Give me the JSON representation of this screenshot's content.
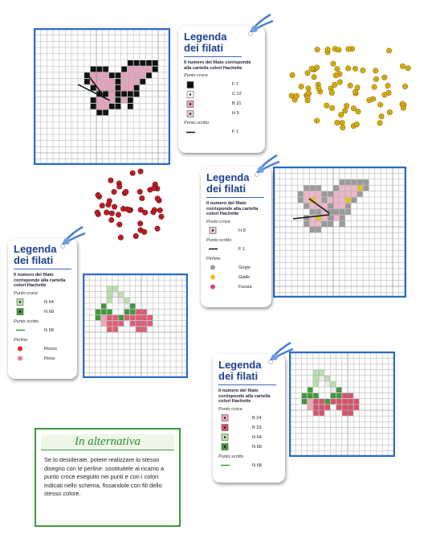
{
  "legends": [
    {
      "title": "Legenda dei filati",
      "note": "Il numero del filato corrisponde alla cartella colori Hachette",
      "sections": [
        {
          "heading": "Punto croce",
          "mark": "square",
          "items": [
            {
              "label": "F 1",
              "swatch": "#111111"
            },
            {
              "label": "C 12",
              "swatch": "#ffffff"
            },
            {
              "label": "B 31",
              "swatch": "#e9a0bd"
            },
            {
              "label": "H 9",
              "swatch": "#e7c9dc"
            }
          ]
        },
        {
          "heading": "Punto scritto",
          "mark": "line",
          "items": [
            {
              "label": "F 1",
              "swatch": "#111111"
            }
          ]
        }
      ]
    },
    {
      "title": "Legenda dei filati",
      "note": "Il numero del filato corrisponde alla cartella colori Hachette",
      "sections": [
        {
          "heading": "Punto croce",
          "mark": "square",
          "items": [
            {
              "label": "H 9",
              "swatch": "#e7c9dc"
            }
          ]
        },
        {
          "heading": "Punto scritto",
          "mark": "line",
          "items": [
            {
              "label": "F 1",
              "swatch": "#111111"
            }
          ]
        },
        {
          "heading": "Perline",
          "mark": "bead",
          "items": [
            {
              "label": "Grigio",
              "swatch": "#9a9a9a"
            },
            {
              "label": "Giallo",
              "swatch": "#e8c21a"
            },
            {
              "label": "Fucsia",
              "swatch": "#e0408a"
            }
          ]
        }
      ]
    },
    {
      "title": "Legenda dei filati",
      "note": "Il numero del filato corrisponde alla cartella colori Hachette",
      "sections": [
        {
          "heading": "Punto croce",
          "mark": "square",
          "items": [
            {
              "label": "N 64",
              "swatch": "#b8e3a8"
            },
            {
              "label": "N 68",
              "swatch": "#3f9a3a"
            }
          ]
        },
        {
          "heading": "Punto scritto",
          "mark": "line",
          "items": [
            {
              "label": "N 68",
              "swatch": "#3f9a3a"
            }
          ]
        },
        {
          "heading": "Perline",
          "mark": "bead",
          "items": [
            {
              "label": "Rosso",
              "swatch": "#d7262e"
            },
            {
              "label": "Rosa",
              "swatch": "#f07a90"
            }
          ]
        }
      ]
    },
    {
      "title": "Legenda dei filati",
      "note": "Il numero del filato corrisponde alla cartella colori Hachette",
      "sections": [
        {
          "heading": "Punto croce",
          "mark": "square",
          "items": [
            {
              "label": "B 24",
              "swatch": "#f2a6b6"
            },
            {
              "label": "B 23",
              "swatch": "#d9506a"
            },
            {
              "label": "N 64",
              "swatch": "#b8e3a8"
            },
            {
              "label": "N 68",
              "swatch": "#3f9a3a"
            }
          ]
        },
        {
          "heading": "Punto scritto",
          "mark": "line",
          "items": [
            {
              "label": "N 68",
              "swatch": "#3f9a3a"
            }
          ]
        }
      ]
    }
  ],
  "alternative": {
    "title": "In alternativa",
    "text": "Se lo desiderate, potete realizzare lo stesso disegno con le perline: sostituitele al ricamo a punto croce eseguito nei punti e con i colori indicati nello schema, fissandole con fili dello stesso colore."
  }
}
